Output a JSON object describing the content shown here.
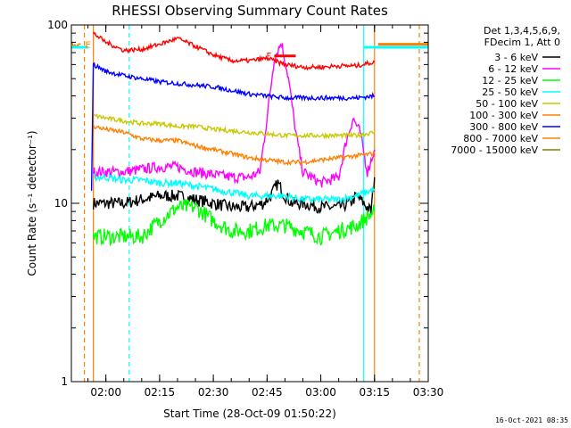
{
  "chart_data": {
    "type": "line",
    "title": "RHESSI Observing Summary Count Rates",
    "xlabel": "Start Time (28-Oct-09 01:50:22)",
    "ylabel": "Count Rate (s⁻¹ detector⁻¹)",
    "y_scale": "log",
    "xlim": [
      "01:50:22",
      "03:30:00"
    ],
    "ylim": [
      1,
      100
    ],
    "x_ticks": [
      "02:00",
      "02:15",
      "02:30",
      "02:45",
      "03:00",
      "03:15",
      "03:30"
    ],
    "y_ticks": [
      "1",
      "10",
      "100"
    ],
    "legend_header": [
      "Det 1,3,4,5,6,9,",
      "FDecim 1, Att 0"
    ],
    "legend_placement": "right",
    "timestamp": "16-Oct-2021 08:35",
    "flag_label": "F",
    "flag_color": "#ff0000",
    "eclipse_label": "E",
    "series": [
      {
        "name": "3 - 6 keV",
        "color": "#000000",
        "x": [
          "01:56:30",
          "02:00",
          "02:05",
          "02:10",
          "02:15",
          "02:20",
          "02:25",
          "02:30",
          "02:35",
          "02:40",
          "02:44",
          "02:46",
          "02:48",
          "02:50",
          "02:52",
          "02:55",
          "03:00",
          "03:05",
          "03:08",
          "03:10",
          "03:12",
          "03:14",
          "03:15"
        ],
        "y": [
          10,
          10,
          10,
          10.5,
          11,
          11,
          10.5,
          10,
          9.5,
          9.5,
          10,
          11,
          13,
          11,
          10,
          10,
          9.5,
          9.5,
          10,
          11,
          10,
          9,
          14
        ]
      },
      {
        "name": "6 - 12 keV",
        "color": "#ff00ff",
        "x": [
          "01:56:30",
          "02:00",
          "02:05",
          "02:10",
          "02:15",
          "02:20",
          "02:25",
          "02:30",
          "02:35",
          "02:40",
          "02:43",
          "02:45",
          "02:47",
          "02:49",
          "02:51",
          "02:53",
          "02:55",
          "03:00",
          "03:05",
          "03:07",
          "03:09",
          "03:11",
          "03:13",
          "03:15"
        ],
        "y": [
          15,
          15,
          15,
          15.5,
          16,
          16,
          15,
          14.5,
          14,
          14,
          15,
          30,
          65,
          80,
          50,
          25,
          15,
          13,
          14,
          22,
          30,
          25,
          15,
          20
        ]
      },
      {
        "name": "12 - 25 keV",
        "color": "#00ff00",
        "x": [
          "01:56:30",
          "02:00",
          "02:05",
          "02:10",
          "02:15",
          "02:20",
          "02:25",
          "02:30",
          "02:35",
          "02:40",
          "02:45",
          "02:50",
          "02:55",
          "03:00",
          "03:05",
          "03:10",
          "03:15"
        ],
        "y": [
          6.5,
          6.5,
          6.5,
          6.5,
          8,
          9.5,
          9.5,
          8,
          7,
          7,
          7.5,
          7.5,
          7,
          6.5,
          7,
          7.5,
          9
        ]
      },
      {
        "name": "25 - 50 keV",
        "color": "#00ffff",
        "x": [
          "01:56:30",
          "02:00",
          "02:05",
          "02:10",
          "02:15",
          "02:20",
          "02:25",
          "02:30",
          "02:35",
          "02:40",
          "02:45",
          "02:50",
          "02:55",
          "03:00",
          "03:05",
          "03:10",
          "03:15"
        ],
        "y": [
          14,
          14,
          13.5,
          13.5,
          13,
          13,
          12.5,
          12,
          11.5,
          11,
          11,
          11,
          10.5,
          10.5,
          10.5,
          11,
          12
        ]
      },
      {
        "name": "50 - 100 keV",
        "color": "#c8c800",
        "x": [
          "01:56:30",
          "02:00",
          "02:05",
          "02:10",
          "02:15",
          "02:20",
          "02:25",
          "02:30",
          "02:35",
          "02:40",
          "02:45",
          "02:50",
          "02:55",
          "03:00",
          "03:05",
          "03:10",
          "03:15"
        ],
        "y": [
          31,
          30,
          29,
          28,
          28,
          27,
          27,
          26,
          25.5,
          25,
          24.5,
          24,
          24,
          24,
          24,
          24,
          25
        ]
      },
      {
        "name": "100 - 300 keV",
        "color": "#ff8000",
        "x": [
          "01:56:30",
          "02:00",
          "02:05",
          "02:10",
          "02:15",
          "02:20",
          "02:25",
          "02:30",
          "02:35",
          "02:40",
          "02:45",
          "02:50",
          "02:55",
          "03:00",
          "03:05",
          "03:10",
          "03:15"
        ],
        "y": [
          27,
          26,
          25,
          23,
          22.5,
          22.5,
          21,
          20,
          19,
          18,
          17.5,
          17,
          17,
          17.5,
          18,
          18.5,
          19
        ]
      },
      {
        "name": "300 - 800 keV",
        "color": "#0000ff",
        "x": [
          "01:56:00",
          "01:56:30",
          "02:00",
          "02:05",
          "02:10",
          "02:15",
          "02:20",
          "02:25",
          "02:30",
          "02:35",
          "02:40",
          "02:45",
          "02:50",
          "02:55",
          "03:00",
          "03:05",
          "03:10",
          "03:15"
        ],
        "y": [
          12,
          60,
          55,
          52,
          50,
          48,
          47,
          46,
          45,
          43,
          41,
          40,
          39,
          39,
          39,
          39,
          39,
          40
        ]
      },
      {
        "name": "800 - 7000 keV",
        "color": "#ff8000",
        "x": [
          "01:50:22",
          "01:53:00"
        ],
        "y": [
          78,
          78
        ]
      },
      {
        "name": "7000 - 15000 keV",
        "color": "#808000",
        "x": [],
        "y": []
      }
    ],
    "total_trace": {
      "color": "#ff0000",
      "x": [
        "01:56:30",
        "02:00",
        "02:05",
        "02:10",
        "02:15",
        "02:20",
        "02:25",
        "02:30",
        "02:35",
        "02:40",
        "02:45",
        "02:50",
        "02:55",
        "03:00",
        "03:05",
        "03:10",
        "03:15"
      ],
      "y": [
        90,
        80,
        72,
        73,
        78,
        84,
        76,
        68,
        63,
        63,
        65,
        60,
        58,
        58,
        59,
        59,
        62
      ]
    },
    "horizontal_segments": [
      {
        "color": "#00ffff",
        "x": [
          "01:50:22",
          "01:55:00"
        ],
        "y": 75
      },
      {
        "color": "#00ffff",
        "x": [
          "03:12:00",
          "03:30:00"
        ],
        "y": 75
      },
      {
        "color": "#ff8000",
        "x": [
          "03:16:00",
          "03:30:00"
        ],
        "y": 78
      },
      {
        "color": "#ff0000",
        "x": [
          "02:47:00",
          "02:53:00"
        ],
        "y": 67
      }
    ],
    "vertical_markers": [
      {
        "x": "01:54:00",
        "color": "#ff8000",
        "style": "dashed"
      },
      {
        "x": "01:56:30",
        "color": "#ff8000",
        "style": "solid"
      },
      {
        "x": "02:06:30",
        "color": "#00ffff",
        "style": "dashed"
      },
      {
        "x": "03:12:00",
        "color": "#00ffff",
        "style": "solid"
      },
      {
        "x": "03:15:00",
        "color": "#ff8000",
        "style": "solid"
      },
      {
        "x": "03:27:30",
        "color": "#ff8000",
        "style": "dashed"
      }
    ]
  }
}
